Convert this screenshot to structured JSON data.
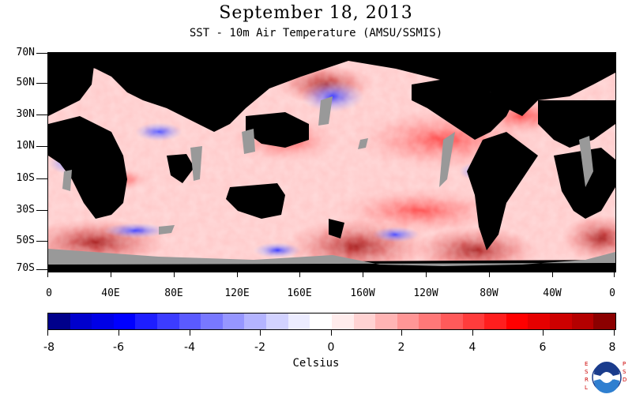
{
  "title": "September 18, 2013",
  "subtitle": "SST - 10m Air Temperature (AMSU/SSMIS)",
  "y_labels": [
    "70N",
    "50N",
    "30N",
    "10N",
    "10S",
    "30S",
    "50S",
    "70S"
  ],
  "x_labels": [
    "0",
    "40E",
    "80E",
    "120E",
    "160E",
    "160W",
    "120W",
    "80W",
    "40W",
    "0"
  ],
  "colorbar": {
    "labels": [
      "-8",
      "-6",
      "-4",
      "-2",
      "0",
      "2",
      "4",
      "6",
      "8"
    ],
    "unit": "Celsius",
    "colors": [
      "#00008b",
      "#0000cd",
      "#0000e6",
      "#0000ff",
      "#1e1eff",
      "#3c3cff",
      "#5a5aff",
      "#7878ff",
      "#9696ff",
      "#b4b4ff",
      "#d2d2ff",
      "#ececff",
      "#ffffff",
      "#ffecec",
      "#ffd2d2",
      "#ffb4b4",
      "#ff9696",
      "#ff7878",
      "#ff5a5a",
      "#ff3c3c",
      "#ff1e1e",
      "#ff0000",
      "#e60000",
      "#cd0000",
      "#b40000",
      "#8b0000"
    ]
  },
  "map_colors": {
    "land": "#000000",
    "ice_missing": "#999999"
  },
  "logo": {
    "left_text": "ESRL",
    "right_text": "PSD",
    "center_text": "NOAA"
  }
}
